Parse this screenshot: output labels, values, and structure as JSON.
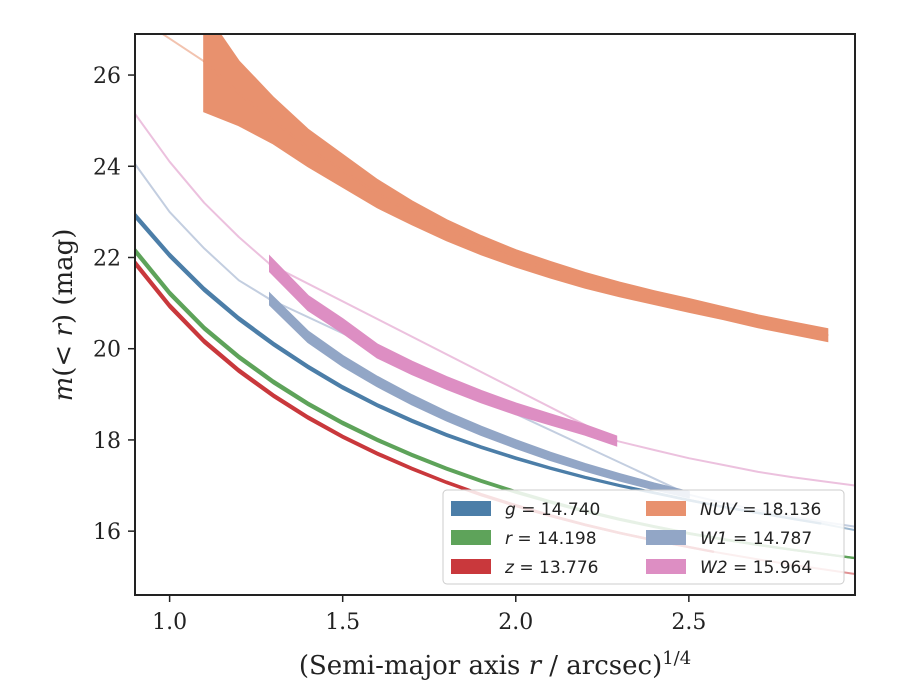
{
  "chart_data": {
    "type": "line",
    "xlabel_prefix": "(Semi-major axis ",
    "xlabel_var": "r",
    "xlabel_mid": " / arcsec)",
    "xlabel_sup": "1/4",
    "ylabel_pre": "m",
    "ylabel_mid": "(< ",
    "ylabel_var": "r",
    "ylabel_post": ") (mag)",
    "xlim": [
      0.9,
      2.98
    ],
    "ylim": [
      26.9,
      14.6
    ],
    "y_inverted": true,
    "xticks": [
      1.0,
      1.5,
      2.0,
      2.5
    ],
    "xtick_labels": [
      "1.0",
      "1.5",
      "2.0",
      "2.5"
    ],
    "yticks": [
      16,
      18,
      20,
      22,
      24,
      26
    ],
    "ytick_labels": [
      "16",
      "18",
      "20",
      "22",
      "24",
      "26"
    ],
    "grid": false,
    "legend_position": "lower-right",
    "legend_columns": 2,
    "series": [
      {
        "name": "g",
        "band": "g",
        "value": "14.740",
        "color": "#4c7ea8",
        "measured_x": [
          0.9,
          1.0,
          1.1,
          1.2,
          1.3,
          1.4,
          1.5,
          1.6,
          1.7,
          1.8,
          1.9,
          2.0,
          2.1,
          2.2,
          2.3,
          2.4,
          2.5,
          2.6,
          2.7,
          2.8,
          2.88
        ],
        "measured_y": [
          22.92,
          22.05,
          21.3,
          20.66,
          20.1,
          19.6,
          19.15,
          18.76,
          18.42,
          18.11,
          17.84,
          17.6,
          17.38,
          17.18,
          17.0,
          16.84,
          16.68,
          16.53,
          16.4,
          16.27,
          16.17
        ],
        "model_x": [
          2.88,
          2.98
        ],
        "model_y": [
          16.17,
          16.02
        ],
        "band_width": [
          0.04,
          0.0
        ]
      },
      {
        "name": "r",
        "band": "r",
        "value": "14.198",
        "color": "#5ea35a",
        "measured_x": [
          0.9,
          1.0,
          1.1,
          1.2,
          1.3,
          1.4,
          1.5,
          1.6,
          1.7,
          1.8,
          1.9,
          2.0,
          2.1,
          2.2,
          2.3,
          2.4,
          2.5,
          2.6,
          2.7,
          2.8,
          2.9,
          2.98
        ],
        "measured_y": [
          22.15,
          21.22,
          20.45,
          19.82,
          19.27,
          18.79,
          18.37,
          18.0,
          17.67,
          17.37,
          17.1,
          16.86,
          16.64,
          16.44,
          16.26,
          16.1,
          15.95,
          15.82,
          15.7,
          15.59,
          15.49,
          15.41
        ],
        "model_x": [],
        "model_y": [],
        "band_width": [
          0.04,
          0.0
        ]
      },
      {
        "name": "z",
        "band": "z",
        "value": "13.776",
        "color": "#c9383c",
        "measured_x": [
          0.9,
          1.0,
          1.1,
          1.2,
          1.3,
          1.4,
          1.5,
          1.6,
          1.7,
          1.8,
          1.9,
          2.0,
          2.1,
          2.2,
          2.3,
          2.4,
          2.5,
          2.57
        ],
        "measured_y": [
          21.88,
          20.94,
          20.16,
          19.52,
          18.97,
          18.49,
          18.07,
          17.7,
          17.37,
          17.07,
          16.8,
          16.56,
          16.34,
          16.14,
          15.96,
          15.8,
          15.65,
          15.55
        ],
        "model_x": [
          2.57,
          2.6,
          2.7,
          2.8,
          2.9,
          2.98
        ],
        "model_y": [
          15.55,
          15.51,
          15.38,
          15.26,
          15.15,
          15.06
        ],
        "band_width": [
          0.04,
          0.0
        ]
      },
      {
        "name": "NUV",
        "band": "NUV",
        "value": "18.136",
        "color": "#e8916e",
        "measured_x": [
          1.1,
          1.2,
          1.3,
          1.4,
          1.5,
          1.6,
          1.7,
          1.8,
          1.9,
          2.0,
          2.1,
          2.2,
          2.3,
          2.4,
          2.5,
          2.6,
          2.7,
          2.8,
          2.9
        ],
        "measured_y": [
          26.3,
          25.6,
          25.0,
          24.4,
          23.9,
          23.4,
          22.98,
          22.6,
          22.27,
          21.98,
          21.73,
          21.5,
          21.3,
          21.12,
          20.95,
          20.78,
          20.6,
          20.45,
          20.3
        ],
        "model_x": [
          0.9,
          1.0,
          1.1
        ],
        "model_y": [
          27.3,
          26.8,
          26.3
        ],
        "band_width": [
          1.1,
          0.7,
          0.5,
          0.4,
          0.35,
          0.3,
          0.25,
          0.22,
          0.2,
          0.18,
          0.17,
          0.16,
          0.15,
          0.14,
          0.14,
          0.13,
          0.13,
          0.13,
          0.13
        ]
      },
      {
        "name": "W1",
        "band": "W1",
        "value": "14.787",
        "color": "#92a6c6",
        "measured_x": [
          1.29,
          1.4,
          1.5,
          1.6,
          1.7,
          1.8,
          1.9,
          2.0,
          2.1,
          2.2,
          2.3,
          2.4,
          2.5
        ],
        "measured_y": [
          21.08,
          20.26,
          19.73,
          19.28,
          18.88,
          18.52,
          18.2,
          17.91,
          17.64,
          17.4,
          17.18,
          16.98,
          16.8
        ],
        "model_x": [
          0.9,
          1.0,
          1.1,
          1.2,
          1.29,
          1.29,
          2.5,
          2.6,
          2.7,
          2.8,
          2.9,
          2.98
        ],
        "model_y": [
          24.05,
          23.0,
          22.2,
          21.5,
          21.08,
          21.08,
          16.8,
          16.62,
          16.46,
          16.32,
          16.19,
          16.1
        ],
        "band_width": [
          0.12,
          0.06
        ]
      },
      {
        "name": "W2",
        "band": "W2",
        "value": "15.964",
        "color": "#dd8ec3",
        "measured_x": [
          1.29,
          1.4,
          1.5,
          1.6,
          1.7,
          1.8,
          1.9,
          2.0,
          2.1,
          2.2,
          2.29
        ],
        "measured_y": [
          21.85,
          21.0,
          20.5,
          19.95,
          19.58,
          19.25,
          18.95,
          18.68,
          18.45,
          18.22,
          17.98
        ],
        "model_x": [
          0.9,
          1.0,
          1.1,
          1.2,
          1.29,
          1.29,
          2.29,
          2.4,
          2.5,
          2.6,
          2.7,
          2.8,
          2.9,
          2.98
        ],
        "model_y": [
          25.15,
          24.1,
          23.2,
          22.45,
          21.85,
          21.85,
          17.98,
          17.78,
          17.6,
          17.45,
          17.3,
          17.18,
          17.08,
          17.0
        ],
        "band_width": [
          0.16,
          0.1
        ]
      }
    ]
  }
}
